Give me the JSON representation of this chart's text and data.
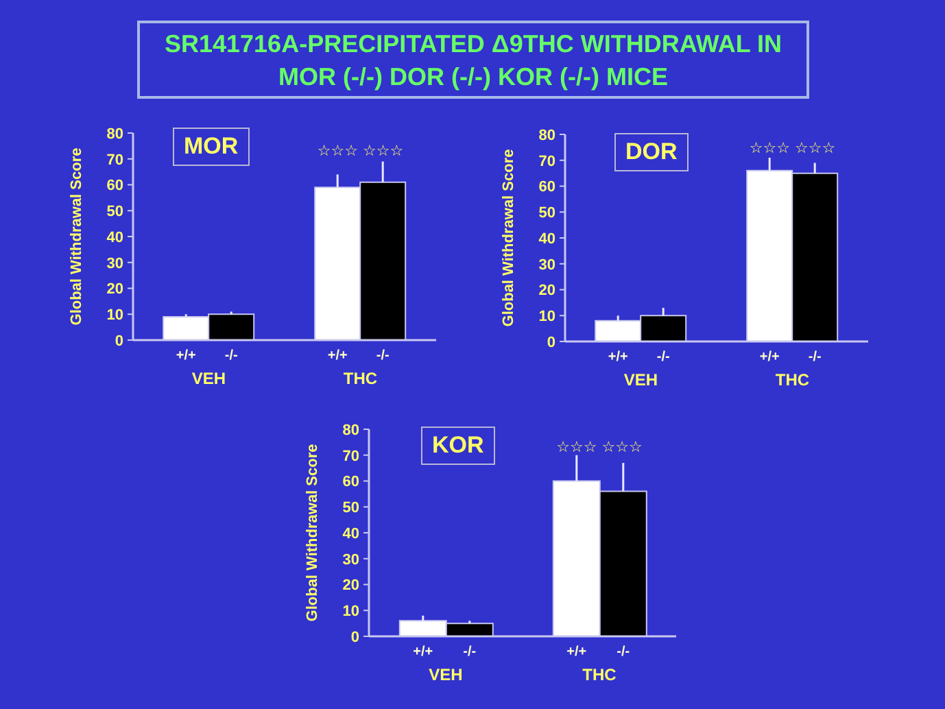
{
  "chart_data": [
    {
      "type": "other",
      "title": "SR141716A-PRECIPITATED Δ9THC WITHDRAWAL IN MOR (-/-) DOR (-/-) KOR (-/-) MICE"
    },
    {
      "type": "bar",
      "title": "MOR",
      "ylabel": "Global Withdrawal Score",
      "categories": [
        "VEH",
        "THC"
      ],
      "series": [
        {
          "name": "+/+",
          "color": "#ffffff",
          "values": [
            9,
            59
          ],
          "errors": [
            [
              9,
              10
            ],
            [
              59,
              64
            ]
          ]
        },
        {
          "name": "-/-",
          "color": "#000000",
          "values": [
            10,
            61
          ],
          "errors": [
            [
              10,
              11
            ],
            [
              61,
              69
            ]
          ]
        }
      ],
      "ylim": [
        0,
        80
      ],
      "yticks": [
        0,
        10,
        20,
        30,
        40,
        50,
        60,
        70,
        80
      ],
      "annotations": [
        "☆☆☆ ☆☆☆"
      ]
    },
    {
      "type": "bar",
      "title": "DOR",
      "ylabel": "Global Withdrawal Score",
      "categories": [
        "VEH",
        "THC"
      ],
      "series": [
        {
          "name": "+/+",
          "color": "#ffffff",
          "values": [
            8,
            66
          ],
          "errors": [
            [
              8,
              10
            ],
            [
              66,
              71
            ]
          ]
        },
        {
          "name": "-/-",
          "color": "#000000",
          "values": [
            10,
            65
          ],
          "errors": [
            [
              10,
              13
            ],
            [
              65,
              69
            ]
          ]
        }
      ],
      "ylim": [
        0,
        80
      ],
      "yticks": [
        0,
        10,
        20,
        30,
        40,
        50,
        60,
        70,
        80
      ],
      "annotations": [
        "☆☆☆ ☆☆☆"
      ]
    },
    {
      "type": "bar",
      "title": "KOR",
      "ylabel": "Global Withdrawal Score",
      "categories": [
        "VEH",
        "THC"
      ],
      "series": [
        {
          "name": "+/+",
          "color": "#ffffff",
          "values": [
            6,
            60
          ],
          "errors": [
            [
              6,
              8
            ],
            [
              60,
              70
            ]
          ]
        },
        {
          "name": "-/-",
          "color": "#000000",
          "values": [
            5,
            56
          ],
          "errors": [
            [
              5,
              6
            ],
            [
              56,
              67
            ]
          ]
        }
      ],
      "ylim": [
        0,
        80
      ],
      "yticks": [
        0,
        10,
        20,
        30,
        40,
        50,
        60,
        70,
        80
      ],
      "annotations": [
        "☆☆☆ ☆☆☆"
      ]
    }
  ]
}
